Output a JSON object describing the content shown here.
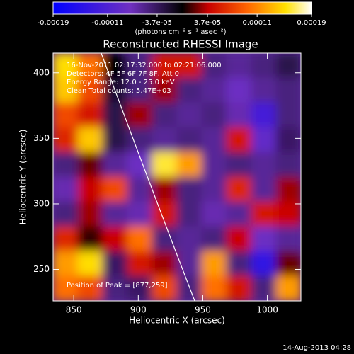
{
  "chart_data": {
    "type": "heatmap",
    "title": "Reconstructed RHESSI Image",
    "xlabel": "Heliocentric X (arcsec)",
    "ylabel": "Heliocentric Y (arcsec)",
    "colorbar_label": "(photons cm⁻² s⁻¹ asec⁻²)",
    "annotations": [
      "16-Nov-2011 02:17:32.000 to 02:21:06.000",
      "Detectors: 4F 5F 6F 7F 8F, Att 0",
      "Energy Range: 12.0 - 25.0 keV",
      "Clean  Total counts: 5.47E+03"
    ],
    "peak_label": "Position of Peak = [877,259]",
    "footer": "14-Aug-2013 04:28",
    "xlim": [
      834,
      1026
    ],
    "ylim": [
      226,
      415
    ],
    "xticks": [
      850,
      900,
      950,
      1000
    ],
    "yticks": [
      250,
      300,
      350,
      400
    ],
    "clim": [
      -0.00019,
      0.00019
    ],
    "cticks": [
      -0.00019,
      -0.00011,
      {
        "value": -3.7e-05,
        "label": "-3.7e-05"
      },
      {
        "value": 3.7e-05,
        "label": "3.7e-05"
      },
      0.00011,
      0.00019
    ],
    "x": [
      843.6,
      862.8,
      882,
      901.2,
      920.4,
      939.6,
      958.8,
      978,
      997.2,
      1016.4
    ],
    "y": [
      405.55,
      386.65,
      367.75,
      348.85,
      329.95,
      311.05,
      292.15,
      273.25,
      254.35,
      235.45
    ],
    "values": [
      [
        0.00015,
        0.0001,
        0,
        -5e-05,
        5e-05,
        5e-05,
        -5e-05,
        -6e-05,
        -5e-05,
        -3e-05
      ],
      [
        0.00014,
        8e-05,
        -2e-05,
        -5e-05,
        3e-05,
        -5e-05,
        -6e-05,
        -8e-05,
        -6e-05,
        -5e-05
      ],
      [
        8e-05,
        5e-05,
        -3e-05,
        3e-05,
        -5e-05,
        -6e-05,
        -5e-05,
        -7e-05,
        -0.00012,
        -5e-05
      ],
      [
        6e-05,
        0.00014,
        -3e-05,
        -5e-05,
        -6e-05,
        -5e-05,
        -6e-05,
        5e-05,
        -9e-05,
        -4e-05
      ],
      [
        -5e-05,
        2e-05,
        -6e-05,
        -8e-05,
        0.00016,
        0.00012,
        -6e-05,
        -5e-05,
        -6e-05,
        -5e-05
      ],
      [
        -7e-05,
        4e-05,
        8e-05,
        -6e-05,
        3e-05,
        -5e-05,
        -6e-05,
        6e-05,
        -6e-05,
        3e-05
      ],
      [
        -5e-05,
        3e-05,
        -6e-05,
        -7e-05,
        5e-05,
        -5e-05,
        -7e-05,
        -6e-05,
        5e-05,
        4e-05
      ],
      [
        6e-05,
        1e-05,
        4e-05,
        0.0001,
        -5e-05,
        -6e-05,
        -5e-05,
        4e-05,
        -8e-05,
        -6e-05
      ],
      [
        0.00012,
        0.00015,
        -4e-05,
        5e-05,
        3e-05,
        -6e-05,
        0.00012,
        -5e-05,
        -0.00014,
        2e-05
      ],
      [
        0.0001,
        8e-05,
        -5e-05,
        -4e-05,
        8e-05,
        -5e-05,
        0.0001,
        5e-05,
        -5e-05,
        0.00012
      ]
    ]
  }
}
